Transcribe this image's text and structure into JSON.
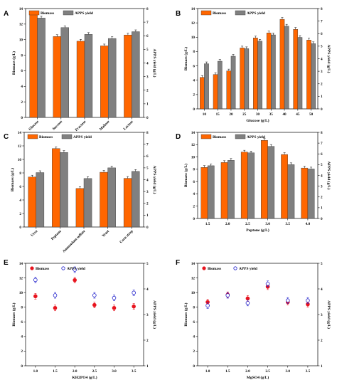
{
  "chart_data": [
    {
      "panel": "A",
      "type": "bar",
      "categories": [
        "Glucose",
        "Sucrose",
        "Fractose",
        "Maltose",
        "Lactose"
      ],
      "xlabel": "",
      "ylabel": "Biomass (g/L)",
      "ylabel_right": "APPS yield (g/L)",
      "ylim": [
        0,
        14
      ],
      "yticks": [
        0,
        2,
        4,
        6,
        8,
        10,
        12,
        14
      ],
      "ylim_right": [
        0,
        8
      ],
      "yticks_right": [
        0,
        1,
        2,
        3,
        4,
        5,
        6,
        7,
        8
      ],
      "legend_position": "top-left",
      "series": [
        {
          "name": "Biomass",
          "axis": "left",
          "color": "#ff6600",
          "values": [
            13.2,
            10.4,
            9.8,
            9.2,
            10.6
          ]
        },
        {
          "name": "APPS yield",
          "axis": "right",
          "color": "#808080",
          "values": [
            7.3,
            6.6,
            6.1,
            5.8,
            6.3
          ]
        }
      ]
    },
    {
      "panel": "B",
      "type": "bar",
      "categories": [
        "10",
        "15",
        "20",
        "25",
        "30",
        "35",
        "40",
        "45",
        "50"
      ],
      "xlabel": "Glucose (g/L)",
      "ylabel": "Biomass (g/L)",
      "ylabel_right": "APPS yield (g/L)",
      "ylim": [
        0,
        14
      ],
      "yticks": [
        0,
        2,
        4,
        6,
        8,
        10,
        12,
        14
      ],
      "ylim_right": [
        0,
        8
      ],
      "yticks_right": [
        0,
        1,
        2,
        3,
        4,
        5,
        6,
        7,
        8
      ],
      "legend_position": "top-left",
      "series": [
        {
          "name": "Biomass",
          "axis": "left",
          "color": "#ff6600",
          "values": [
            4.4,
            4.8,
            5.3,
            8.5,
            9.9,
            10.6,
            12.5,
            11.1,
            9.6
          ]
        },
        {
          "name": "APPS yield",
          "axis": "right",
          "color": "#808080",
          "values": [
            3.6,
            3.8,
            4.2,
            4.8,
            5.4,
            5.9,
            6.6,
            5.7,
            5.2
          ]
        }
      ]
    },
    {
      "panel": "C",
      "type": "bar",
      "categories": [
        "Urea",
        "Peptone",
        "Ammonium sulfate",
        "Yeast",
        "Corn steep"
      ],
      "xlabel": "",
      "ylabel": "Biomass (g/L)",
      "ylabel_right": "APPS yield (g/L)",
      "ylim": [
        0,
        14
      ],
      "yticks": [
        0,
        2,
        4,
        6,
        8,
        10,
        12,
        14
      ],
      "ylim_right": [
        0,
        8
      ],
      "yticks_right": [
        0,
        1,
        2,
        3,
        4,
        5,
        6,
        7,
        8
      ],
      "legend_position": "top-left",
      "series": [
        {
          "name": "Biomass",
          "axis": "left",
          "color": "#ff6600",
          "values": [
            7.4,
            11.6,
            5.7,
            8.1,
            7.2
          ]
        },
        {
          "name": "APPS yield",
          "axis": "right",
          "color": "#808080",
          "values": [
            4.6,
            6.3,
            4.1,
            5.0,
            4.7
          ]
        }
      ]
    },
    {
      "panel": "D",
      "type": "bar",
      "categories": [
        "1.5",
        "2.0",
        "2.5",
        "3.0",
        "3.5",
        "4.0"
      ],
      "xlabel": "Peptone (g/L)",
      "ylabel": "Biomass (g/L)",
      "ylabel_right": "APPS yield (g/L)",
      "ylim": [
        0,
        14
      ],
      "yticks": [
        0,
        2,
        4,
        6,
        8,
        10,
        12,
        14
      ],
      "ylim_right": [
        0,
        8
      ],
      "yticks_right": [
        0,
        1,
        2,
        3,
        4,
        5,
        6,
        7,
        8
      ],
      "legend_position": "top-left",
      "series": [
        {
          "name": "Biomass",
          "axis": "left",
          "color": "#ff6600",
          "values": [
            8.3,
            9.1,
            10.8,
            12.7,
            10.4,
            8.2
          ]
        },
        {
          "name": "APPS yield",
          "axis": "right",
          "color": "#808080",
          "values": [
            4.9,
            5.4,
            6.1,
            6.7,
            5.0,
            4.6
          ]
        }
      ]
    },
    {
      "panel": "E",
      "type": "scatter",
      "categories": [
        "1.0",
        "1.5",
        "2.0",
        "2.5",
        "3.0",
        "3.5"
      ],
      "xlabel": "KH2PO4 (g/L)",
      "ylabel": "Biomass (g/L)",
      "ylabel_right": "APPS yield (g/L)",
      "ylim": [
        0,
        14
      ],
      "yticks": [
        0,
        2,
        4,
        6,
        8,
        10,
        12,
        14
      ],
      "ylim_right": [
        1,
        5
      ],
      "yticks_right": [
        1,
        2,
        3,
        4,
        5
      ],
      "legend_position": "top-left",
      "series": [
        {
          "name": "Biomass",
          "axis": "left",
          "color": "#e8141e",
          "marker": "filled-circle",
          "values": [
            9.5,
            7.9,
            11.7,
            8.3,
            7.9,
            8.1
          ]
        },
        {
          "name": "APPS yield",
          "axis": "right",
          "color": "#2222cc",
          "marker": "open-circle",
          "values": [
            4.35,
            3.75,
            4.75,
            3.75,
            3.65,
            3.85
          ]
        }
      ]
    },
    {
      "panel": "F",
      "type": "scatter",
      "categories": [
        "1.0",
        "1.5",
        "2.0",
        "2.5",
        "3.0",
        "3.5"
      ],
      "xlabel": "MgSO4 (g/L)",
      "ylabel": "Biomass (g/L)",
      "ylabel_right": "APPS yield (g/L)",
      "ylim": [
        0,
        14
      ],
      "yticks": [
        0,
        2,
        4,
        6,
        8,
        10,
        12,
        14
      ],
      "ylim_right": [
        1,
        5
      ],
      "yticks_right": [
        1,
        2,
        3,
        4,
        5
      ],
      "legend_position": "top-left",
      "series": [
        {
          "name": "Biomass",
          "axis": "left",
          "color": "#e8141e",
          "marker": "filled-circle",
          "values": [
            8.7,
            9.7,
            9.2,
            10.8,
            8.7,
            8.4
          ]
        },
        {
          "name": "APPS yield",
          "axis": "right",
          "color": "#2222cc",
          "marker": "open-circle",
          "values": [
            3.35,
            3.75,
            3.45,
            4.2,
            3.55,
            3.55
          ]
        }
      ]
    }
  ]
}
